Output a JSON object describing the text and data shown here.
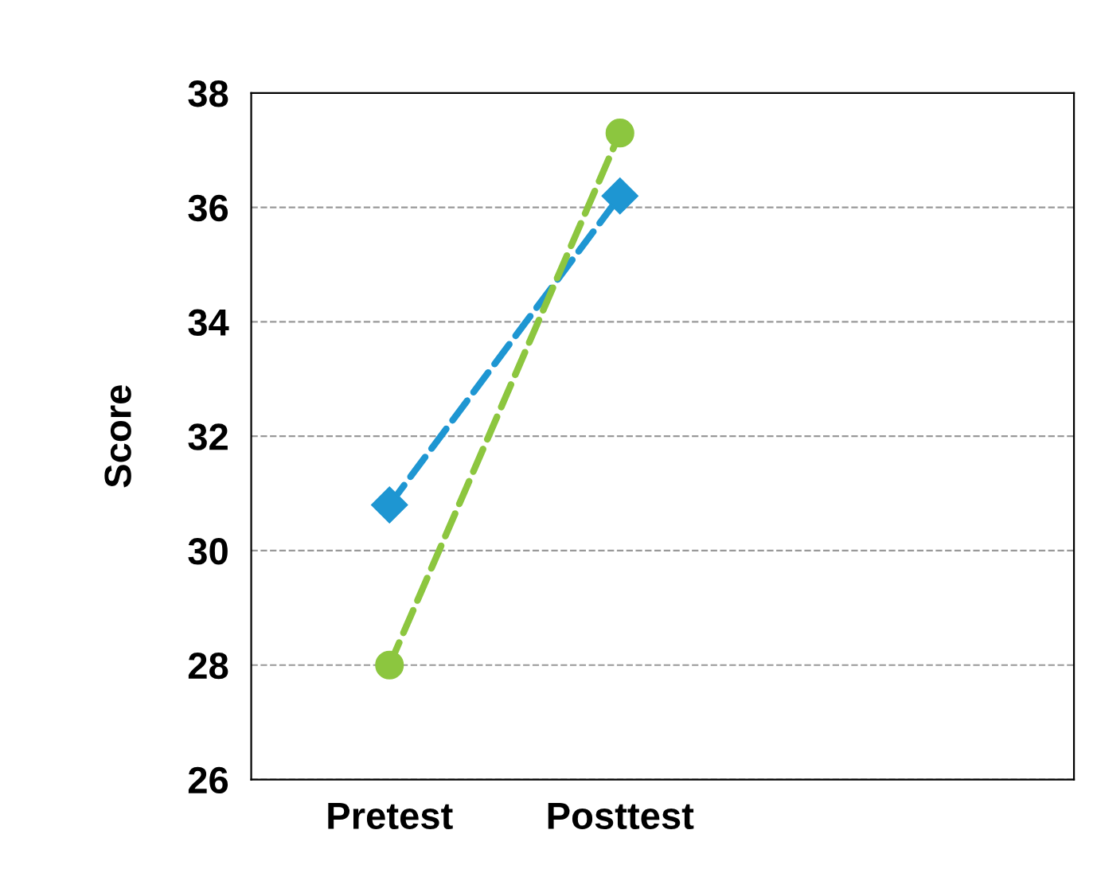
{
  "chart_data": {
    "type": "line",
    "ylabel": "Score",
    "categories": [
      "Pretest",
      "Posttest"
    ],
    "series": [
      {
        "color": "#1e96d2",
        "values": [
          30.8,
          36.2
        ],
        "marker": "diamond"
      },
      {
        "color": "#8cc63f",
        "values": [
          28.0,
          37.3
        ],
        "marker": "circle"
      }
    ],
    "ylim": [
      26,
      38
    ],
    "yticks": [
      26,
      28,
      30,
      32,
      34,
      36,
      38
    ],
    "grid": "y",
    "line_style": "dashed",
    "legend": false
  }
}
